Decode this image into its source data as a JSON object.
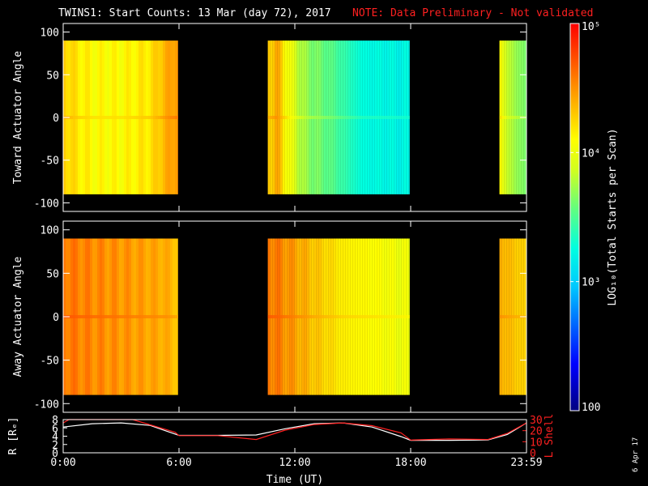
{
  "title": {
    "main": "TWINS1: Start Counts: 13 Mar (day  72), 2017",
    "note": "NOTE: Data Preliminary - Not validated"
  },
  "date_stamp": "6 Apr 17",
  "colorbar": {
    "scale": "log",
    "min": 100,
    "max": 100000,
    "tick_labels": [
      "100",
      "10³",
      "10⁴",
      "10⁵"
    ],
    "tick_values": [
      100,
      1000,
      10000,
      100000
    ],
    "label": "LOG₁₀(Total Starts per Scan)"
  },
  "chart_data": [
    {
      "type": "heatmap",
      "name": "toward",
      "ylabel": "Toward Actuator Angle",
      "ylim": [
        -110,
        110
      ],
      "ytick_labels": [
        "100",
        "50",
        "0",
        "-50",
        "-100"
      ],
      "ytick_values": [
        100,
        50,
        0,
        -50,
        -100
      ],
      "angle_range": [
        -90,
        90
      ],
      "x_unit": "hours UT",
      "segments": [
        {
          "start": 0.0,
          "end": 5.95,
          "profile": [
            {
              "t": 0.0,
              "log": 4.3
            },
            {
              "t": 0.5,
              "log": 4.2
            },
            {
              "t": 1.5,
              "log": 4.1
            },
            {
              "t": 3.0,
              "log": 4.1
            },
            {
              "t": 4.5,
              "log": 4.2
            },
            {
              "t": 5.3,
              "log": 4.4
            },
            {
              "t": 5.95,
              "log": 4.5
            }
          ]
        },
        {
          "start": 10.6,
          "end": 17.95,
          "profile": [
            {
              "t": 10.6,
              "log": 4.3
            },
            {
              "t": 11.0,
              "log": 4.4
            },
            {
              "t": 11.7,
              "log": 4.0
            },
            {
              "t": 12.5,
              "log": 3.7
            },
            {
              "t": 14.0,
              "log": 3.5
            },
            {
              "t": 15.5,
              "log": 3.25
            },
            {
              "t": 17.95,
              "log": 3.2
            }
          ]
        },
        {
          "start": 22.6,
          "end": 24.0,
          "profile": [
            {
              "t": 22.6,
              "log": 4.1
            },
            {
              "t": 23.0,
              "log": 3.8
            },
            {
              "t": 24.0,
              "log": 3.6
            }
          ]
        }
      ]
    },
    {
      "type": "heatmap",
      "name": "away",
      "ylabel": "Away Actuator Angle",
      "ylim": [
        -110,
        110
      ],
      "ytick_labels": [
        "100",
        "50",
        "0",
        "-50",
        "-100"
      ],
      "ytick_values": [
        100,
        50,
        0,
        -50,
        -100
      ],
      "angle_range": [
        -90,
        90
      ],
      "x_unit": "hours UT",
      "segments": [
        {
          "start": 0.0,
          "end": 5.95,
          "profile": [
            {
              "t": 0.0,
              "log": 4.6
            },
            {
              "t": 1.0,
              "log": 4.55
            },
            {
              "t": 2.5,
              "log": 4.5
            },
            {
              "t": 4.0,
              "log": 4.45
            },
            {
              "t": 5.3,
              "log": 4.4
            },
            {
              "t": 5.95,
              "log": 4.3
            }
          ]
        },
        {
          "start": 10.6,
          "end": 17.95,
          "profile": [
            {
              "t": 10.6,
              "log": 4.6
            },
            {
              "t": 11.5,
              "log": 4.5
            },
            {
              "t": 13.0,
              "log": 4.3
            },
            {
              "t": 14.5,
              "log": 4.15
            },
            {
              "t": 16.0,
              "log": 4.1
            },
            {
              "t": 17.95,
              "log": 4.0
            }
          ]
        },
        {
          "start": 22.6,
          "end": 24.0,
          "profile": [
            {
              "t": 22.6,
              "log": 4.4
            },
            {
              "t": 23.3,
              "log": 4.3
            },
            {
              "t": 24.0,
              "log": 4.25
            }
          ]
        }
      ]
    },
    {
      "type": "line",
      "name": "orbit",
      "xlabel": "Time (UT)",
      "xtick_labels": [
        "0:00",
        "6:00",
        "12:00",
        "18:00",
        "23:59"
      ],
      "xtick_values": [
        0,
        6,
        12,
        18,
        24
      ],
      "xlim": [
        0,
        24
      ],
      "left_axis": {
        "label": "R [Rₑ]",
        "ylim": [
          0,
          8
        ],
        "tick_labels": [
          "0",
          "2",
          "4",
          "6",
          "8"
        ],
        "tick_values": [
          0,
          2,
          4,
          6,
          8
        ]
      },
      "right_axis": {
        "label": "L Shell",
        "ylim": [
          0,
          30
        ],
        "tick_labels": [
          "0",
          "10",
          "20",
          "30"
        ],
        "tick_values": [
          0,
          10,
          20,
          30
        ]
      },
      "series": [
        {
          "name": "R [Rₑ]",
          "axis": "left",
          "color": "#ffffff",
          "x": [
            0,
            1.5,
            3.0,
            4.5,
            5.5,
            6.0,
            8.0,
            10.0,
            11.5,
            13.0,
            14.5,
            16.0,
            17.5,
            18.0,
            20.0,
            22.0,
            23.0,
            24.0
          ],
          "y": [
            6.2,
            7.0,
            7.2,
            6.6,
            5.0,
            4.2,
            4.2,
            4.3,
            5.8,
            7.0,
            7.2,
            6.2,
            3.9,
            3.0,
            3.0,
            3.1,
            4.4,
            7.2
          ]
        },
        {
          "name": "L Shell",
          "axis": "right",
          "color": "#ff2020",
          "x": [
            0,
            0.3,
            3.6,
            5.8,
            6.0,
            8.0,
            10.0,
            11.5,
            13.0,
            14.5,
            16.0,
            17.5,
            18.0,
            20.0,
            22.0,
            23.0,
            24.0
          ],
          "y": [
            27,
            30,
            30,
            18.5,
            15.5,
            15.5,
            12.0,
            20.5,
            25.5,
            27.0,
            24.5,
            18.0,
            11.5,
            12.5,
            12.0,
            17.5,
            27.0
          ]
        }
      ]
    }
  ]
}
